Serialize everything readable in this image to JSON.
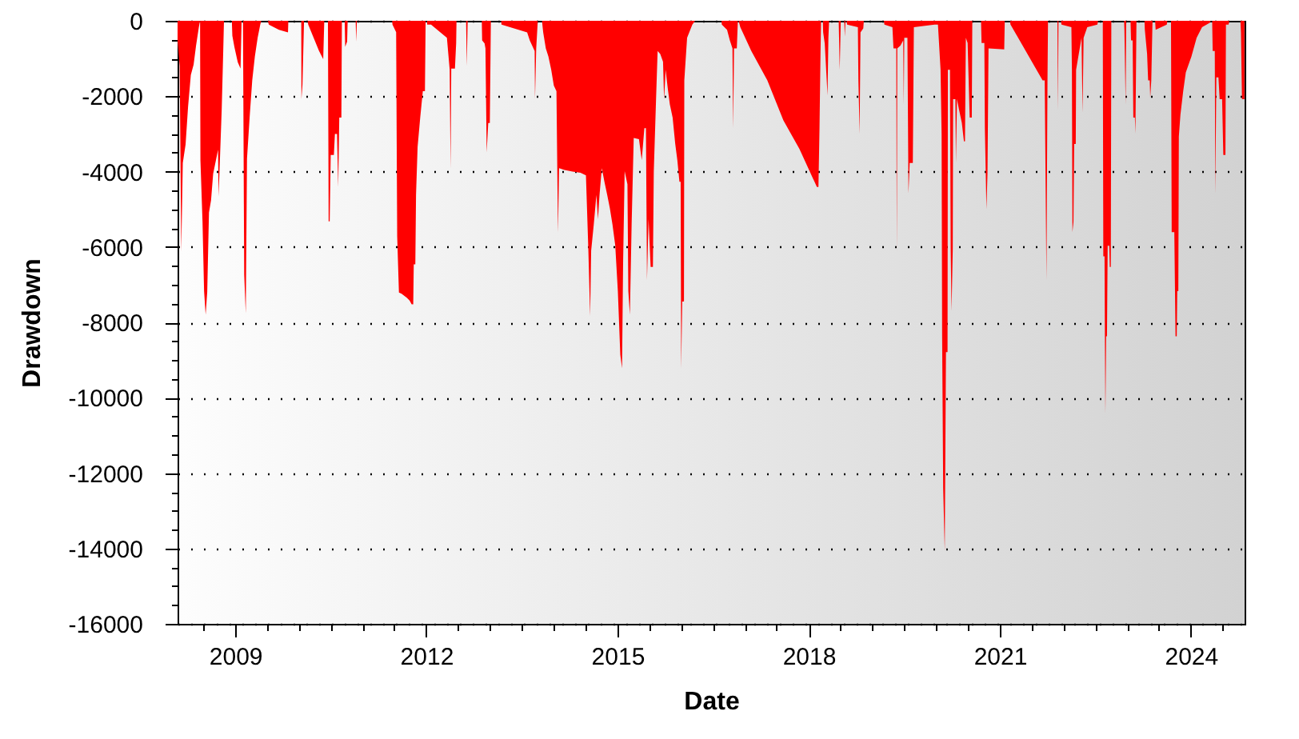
{
  "chart_data": {
    "type": "area",
    "xlabel": "Date",
    "ylabel": "Drawdown",
    "color": "#ff0000",
    "grid": "y",
    "xlim": [
      "2008-02-05",
      "2024-11-04"
    ],
    "ylim": [
      -16000,
      0
    ],
    "xticks": [
      {
        "value": "2008-07",
        "label": null
      },
      "2009",
      {
        "value": "2009-07",
        "label": null
      },
      {
        "value": "2010",
        "label": null
      },
      {
        "value": "2010-07",
        "label": null
      },
      {
        "value": "2011",
        "label": null
      },
      {
        "value": "2011-07",
        "label": null
      },
      "2012",
      {
        "value": "2012-07",
        "label": null
      },
      {
        "value": "2013",
        "label": null
      },
      {
        "value": "2013-07",
        "label": null
      },
      {
        "value": "2014",
        "label": null
      },
      {
        "value": "2014-07",
        "label": null
      },
      "2015",
      {
        "value": "2015-07",
        "label": null
      },
      {
        "value": "2016",
        "label": null
      },
      {
        "value": "2016-07",
        "label": null
      },
      {
        "value": "2017",
        "label": null
      },
      {
        "value": "2017-07",
        "label": null
      },
      "2018",
      {
        "value": "2018-07",
        "label": null
      },
      {
        "value": "2019",
        "label": null
      },
      {
        "value": "2019-07",
        "label": null
      },
      {
        "value": "2020",
        "label": null
      },
      {
        "value": "2020-07",
        "label": null
      },
      "2021",
      {
        "value": "2021-07",
        "label": null
      },
      {
        "value": "2022",
        "label": null
      },
      {
        "value": "2022-07",
        "label": null
      },
      {
        "value": "2023",
        "label": null
      },
      {
        "value": "2023-07",
        "label": null
      },
      "2024",
      {
        "value": "2024-07",
        "label": null
      }
    ],
    "yticks": [
      0,
      {
        "value": -500,
        "label": null
      },
      {
        "value": -1000,
        "label": null
      },
      {
        "value": -1500,
        "label": null
      },
      -2000,
      {
        "value": -2500,
        "label": null
      },
      {
        "value": -3000,
        "label": null
      },
      {
        "value": -3500,
        "label": null
      },
      -4000,
      {
        "value": -4500,
        "label": null
      },
      {
        "value": -5000,
        "label": null
      },
      {
        "value": -5500,
        "label": null
      },
      -6000,
      {
        "value": -6500,
        "label": null
      },
      {
        "value": -7000,
        "label": null
      },
      {
        "value": -7500,
        "label": null
      },
      -8000,
      {
        "value": -8500,
        "label": null
      },
      {
        "value": -9000,
        "label": null
      },
      {
        "value": -9500,
        "label": null
      },
      -10000,
      {
        "value": -10500,
        "label": null
      },
      {
        "value": -11000,
        "label": null
      },
      {
        "value": -11500,
        "label": null
      },
      -12000,
      {
        "value": -12500,
        "label": null
      },
      {
        "value": -13000,
        "label": null
      },
      {
        "value": -13500,
        "label": null
      },
      -14000,
      {
        "value": -14500,
        "label": null
      },
      {
        "value": -15000,
        "label": null
      },
      {
        "value": -15500,
        "label": null
      },
      -16000
    ],
    "x": [
      "2008-02-05",
      "2008-02-17",
      "2008-02-26",
      "2008-03-06",
      "2008-03-22",
      "2008-04-05",
      "2008-04-21",
      "2008-05-07",
      "2008-05-21",
      "2008-06-06",
      "2008-06-13",
      "2008-06-15",
      "2008-06-27",
      "2008-07-06",
      "2008-07-15",
      "2008-07-24",
      "2008-08-03",
      "2008-08-15",
      "2008-08-27",
      "2008-09-12",
      "2008-09-24",
      "2008-09-27",
      "2008-10-03",
      "2008-10-15",
      "2008-10-24",
      "2008-10-28",
      "2008-12-12",
      "2008-12-15",
      "2008-12-27",
      "2009-01-15",
      "2009-01-31",
      "2009-02-06",
      "2009-02-14",
      "2009-02-21",
      "2009-03-02",
      "2009-03-09",
      "2009-03-24",
      "2009-04-08",
      "2009-04-23",
      "2009-05-09",
      "2009-05-24",
      "2009-05-30",
      "2009-07-07",
      "2009-07-12",
      "2009-09-08",
      "2009-10-30",
      "2009-11-01",
      "2010-01-14",
      "2010-01-15",
      "2010-01-21",
      "2010-01-30",
      "2010-02-20",
      "2010-02-23",
      "2010-03-26",
      "2010-04-26",
      "2010-05-20",
      "2010-05-26",
      "2010-06-16",
      "2010-06-20",
      "2010-06-26",
      "2010-07-02",
      "2010-07-20",
      "2010-07-26",
      "2010-08-07",
      "2010-08-14",
      "2010-08-20",
      "2010-09-01",
      "2010-09-04",
      "2010-09-20",
      "2010-09-23",
      "2010-10-04",
      "2010-10-07",
      "2010-11-22",
      "2010-11-25",
      "2010-11-29",
      "2011-06-19",
      "2011-06-21",
      "2011-07-12",
      "2011-07-18",
      "2011-07-28",
      "2011-08-12",
      "2011-09-11",
      "2011-09-27",
      "2011-10-09",
      "2011-10-18",
      "2011-10-21",
      "2011-10-30",
      "2011-11-03",
      "2011-11-12",
      "2011-11-27",
      "2011-12-12",
      "2011-12-24",
      "2011-12-28",
      "2012-01-05",
      "2012-01-06",
      "2012-01-28",
      "2012-04-28",
      "2012-05-14",
      "2012-05-19",
      "2012-05-23",
      "2012-06-13",
      "2012-06-20",
      "2012-06-22",
      "2012-08-16",
      "2012-08-20",
      "2012-08-25",
      "2012-11-14",
      "2012-11-16",
      "2012-11-30",
      "2012-12-05",
      "2012-12-12",
      "2012-12-21",
      "2012-12-30",
      "2013-01-05",
      "2013-03-05",
      "2013-03-07",
      "2013-08-01",
      "2013-08-16",
      "2013-09-13",
      "2013-09-15",
      "2013-09-22",
      "2013-10-01",
      "2013-10-25",
      "2013-11-01",
      "2013-11-16",
      "2013-12-01",
      "2013-12-17",
      "2014-01-01",
      "2014-01-16",
      "2014-01-22",
      "2014-01-25",
      "2014-01-29",
      "2014-01-31",
      "2014-03-03",
      "2014-04-18",
      "2014-06-03",
      "2014-07-04",
      "2014-07-18",
      "2014-07-28",
      "2014-08-03",
      "2014-08-18",
      "2014-09-02",
      "2014-09-11",
      "2014-09-20",
      "2014-10-03",
      "2014-10-18",
      "2014-11-03",
      "2014-11-18",
      "2014-12-03",
      "2014-12-19",
      "2015-01-03",
      "2015-01-17",
      "2015-01-27",
      "2015-02-02",
      "2015-02-11",
      "2015-02-27",
      "2015-03-04",
      "2015-03-13",
      "2015-03-23",
      "2015-04-04",
      "2015-05-04",
      "2015-05-20",
      "2015-06-04",
      "2015-06-13",
      "2015-06-19",
      "2015-06-28",
      "2015-07-10",
      "2015-07-23",
      "2015-07-28",
      "2015-08-10",
      "2015-08-19",
      "2015-09-03",
      "2015-09-19",
      "2015-09-25",
      "2015-10-04",
      "2015-10-16",
      "2015-10-28",
      "2015-11-13",
      "2015-11-28",
      "2015-12-10",
      "2015-12-22",
      "2015-12-29",
      "2016-01-01",
      "2016-01-07",
      "2016-01-17",
      "2016-01-19",
      "2016-02-04",
      "2016-03-05",
      "2016-03-21",
      "2016-08-19",
      "2016-08-21",
      "2016-09-20",
      "2016-10-06",
      "2016-10-21",
      "2016-10-25",
      "2016-10-30",
      "2016-11-15",
      "2016-11-21",
      "2016-11-25",
      "2016-12-05",
      "2017-02-06",
      "2017-05-09",
      "2017-08-09",
      "2017-11-09",
      "2018-02-17",
      "2018-02-26",
      "2018-03-04",
      "2018-03-10",
      "2018-03-13",
      "2018-03-23",
      "2018-03-25",
      "2018-04-03",
      "2018-04-19",
      "2018-04-24",
      "2018-04-28",
      "2018-06-22",
      "2018-06-28",
      "2018-07-04",
      "2018-07-24",
      "2018-07-27",
      "2018-07-31",
      "2018-08-06",
      "2018-08-09",
      "2018-10-10",
      "2018-10-13",
      "2018-10-20",
      "2018-10-25",
      "2018-11-10",
      "2018-11-13",
      "2019-03-08",
      "2019-03-11",
      "2019-04-26",
      "2019-05-02",
      "2019-05-18",
      "2019-05-21",
      "2019-05-24",
      "2019-06-11",
      "2019-06-27",
      "2019-06-30",
      "2019-07-03",
      "2019-07-21",
      "2019-07-27",
      "2019-08-03",
      "2019-08-21",
      "2019-08-27",
      "2019-12-24",
      "2020-01-12",
      "2020-01-27",
      "2020-02-02",
      "2020-02-05",
      "2020-02-11",
      "2020-02-20",
      "2020-02-27",
      "2020-03-07",
      "2020-03-09",
      "2020-03-21",
      "2020-03-25",
      "2020-03-30",
      "2020-04-06",
      "2020-04-08",
      "2020-04-21",
      "2020-04-24",
      "2020-04-30",
      "2020-05-12",
      "2020-05-28",
      "2020-06-09",
      "2020-06-15",
      "2020-06-20",
      "2020-06-30",
      "2020-07-12",
      "2020-07-24",
      "2020-07-27",
      "2020-09-15",
      "2020-09-18",
      "2020-10-04",
      "2020-10-07",
      "2020-10-16",
      "2020-10-22",
      "2020-10-28",
      "2021-01-26",
      "2021-01-29",
      "2021-02-28",
      "2021-03-03",
      "2021-09-03",
      "2021-09-15",
      "2021-09-25",
      "2021-10-01",
      "2021-10-04",
      "2021-11-27",
      "2021-11-30",
      "2021-12-03",
      "2021-12-17",
      "2021-12-20",
      "2022-02-15",
      "2022-02-18",
      "2022-02-21",
      "2022-02-27",
      "2022-03-03",
      "2022-03-12",
      "2022-03-14",
      "2022-04-14",
      "2022-04-20",
      "2022-04-26",
      "2022-05-17",
      "2022-07-14",
      "2022-07-18",
      "2022-08-14",
      "2022-08-17",
      "2022-08-24",
      "2022-08-26",
      "2022-08-29",
      "2022-09-02",
      "2022-09-07",
      "2022-09-11",
      "2022-09-20",
      "2022-09-23",
      "2022-09-29",
      "2022-10-02",
      "2022-12-14",
      "2022-12-16",
      "2022-12-23",
      "2022-12-26",
      "2023-01-20",
      "2023-01-23",
      "2023-02-01",
      "2023-02-05",
      "2023-02-14",
      "2023-02-17",
      "2023-02-23",
      "2023-04-10",
      "2023-04-12",
      "2023-04-25",
      "2023-05-01",
      "2023-05-10",
      "2023-05-13",
      "2023-05-19",
      "2023-05-26",
      "2023-06-10",
      "2023-06-13",
      "2023-08-16",
      "2023-08-19",
      "2023-09-09",
      "2023-09-13",
      "2023-09-28",
      "2023-10-02",
      "2023-10-05",
      "2023-10-12",
      "2023-10-15",
      "2023-10-21",
      "2023-10-24",
      "2023-11-02",
      "2023-11-18",
      "2023-12-03",
      "2024-01-04",
      "2024-02-03",
      "2024-03-05",
      "2024-04-20",
      "2024-04-23",
      "2024-05-02",
      "2024-05-05",
      "2024-05-17",
      "2024-05-20",
      "2024-05-26",
      "2024-06-07",
      "2024-06-14",
      "2024-06-28",
      "2024-07-05",
      "2024-07-17",
      "2024-07-20",
      "2024-08-04",
      "2024-08-08",
      "2024-10-11",
      "2024-10-14",
      "2024-10-20",
      "2024-10-29",
      "2024-11-03"
    ],
    "values": [
      -520,
      -1200,
      -6130,
      -3770,
      -3280,
      -2290,
      -1440,
      -1160,
      -660,
      -170,
      0,
      -3700,
      -5330,
      -7170,
      -7800,
      -7200,
      -5090,
      -4760,
      -4060,
      -3700,
      -3420,
      -4660,
      -3920,
      -2360,
      -760,
      0,
      0,
      -400,
      -700,
      -1100,
      -1270,
      0,
      0,
      -6740,
      -7760,
      -3660,
      -2570,
      -1580,
      -950,
      -450,
      -100,
      0,
      0,
      -100,
      -240,
      -310,
      0,
      0,
      -2080,
      -1700,
      0,
      0,
      -100,
      -450,
      -800,
      -1020,
      0,
      0,
      -5320,
      -5320,
      -3560,
      -3560,
      -3000,
      -3000,
      -4410,
      -2570,
      -2570,
      0,
      0,
      -690,
      -550,
      0,
      0,
      -550,
      0,
      0,
      -100,
      -300,
      -5720,
      -7210,
      -7240,
      -7350,
      -7420,
      -7520,
      -7520,
      -6460,
      -6460,
      -4620,
      -3350,
      -2570,
      -1870,
      -1870,
      0,
      0,
      -100,
      -100,
      -450,
      -1300,
      -3910,
      -1270,
      -1270,
      -600,
      0,
      0,
      -1190,
      0,
      0,
      -520,
      -600,
      -730,
      -3490,
      -2710,
      -2710,
      0,
      0,
      -100,
      -310,
      -520,
      -800,
      -2080,
      -730,
      0,
      0,
      -310,
      -730,
      -950,
      -1300,
      -1720,
      -1870,
      -4480,
      -5610,
      -4480,
      -3910,
      -3960,
      -4000,
      -4030,
      -4100,
      -6100,
      -7830,
      -6100,
      -5400,
      -4620,
      -5260,
      -4620,
      -3910,
      -4270,
      -4620,
      -4970,
      -5400,
      -5960,
      -7170,
      -8860,
      -9220,
      -6460,
      -3990,
      -4340,
      -7170,
      -7800,
      -5400,
      -3110,
      -3140,
      -3700,
      -2850,
      -2850,
      -6880,
      -5260,
      -6530,
      -6530,
      -4000,
      -2080,
      -800,
      -880,
      -1090,
      -2080,
      -1300,
      -1790,
      -2220,
      -2570,
      -3270,
      -3700,
      -4270,
      -4270,
      -9220,
      -7450,
      -7450,
      -1580,
      -450,
      -100,
      0,
      0,
      -100,
      -240,
      -520,
      -730,
      -2850,
      -730,
      -730,
      0,
      0,
      -170,
      -800,
      -1580,
      -2640,
      -3400,
      -4410,
      -4410,
      -2850,
      -800,
      0,
      0,
      -310,
      -600,
      -1980,
      -450,
      0,
      0,
      -1300,
      0,
      0,
      -420,
      0,
      0,
      -100,
      -170,
      -1580,
      -2990,
      -310,
      -200,
      0,
      0,
      -100,
      -170,
      -730,
      -730,
      -6180,
      -730,
      -660,
      -520,
      -2220,
      -450,
      -450,
      -4580,
      -3770,
      -3770,
      -170,
      -100,
      -100,
      -1300,
      -3000,
      -8370,
      -12400,
      -14060,
      -8790,
      -8790,
      -1300,
      -1300,
      -6040,
      -7700,
      -6040,
      -2080,
      -2080,
      -3770,
      -2080,
      -2360,
      -2710,
      -3200,
      -3200,
      -450,
      -590,
      -2570,
      -2570,
      0,
      0,
      -590,
      -590,
      -2850,
      -5000,
      -4060,
      -730,
      -760,
      0,
      0,
      -100,
      -1580,
      -1580,
      -6880,
      -1580,
      0,
      0,
      -2360,
      0,
      0,
      -100,
      -170,
      -1300,
      -5610,
      -5330,
      -3270,
      -3270,
      -1300,
      -450,
      -2430,
      -450,
      -170,
      -100,
      0,
      0,
      -6250,
      -6250,
      -8370,
      -10420,
      -8370,
      -8370,
      -5970,
      -5970,
      -6530,
      -6530,
      0,
      0,
      -240,
      -2220,
      0,
      0,
      -520,
      -520,
      -2570,
      -2570,
      -2990,
      0,
      0,
      -240,
      -880,
      -1580,
      -1580,
      -2040,
      -1580,
      0,
      0,
      -240,
      -100,
      0,
      0,
      -5610,
      -5610,
      -7170,
      -8370,
      -8370,
      -7170,
      -7170,
      -3070,
      -2500,
      -1870,
      -1370,
      -950,
      -450,
      -170,
      -50,
      0,
      0,
      -800,
      -800,
      -4580,
      -1500,
      -1500,
      -2080,
      -2080,
      -3560,
      -3560,
      -100,
      -100,
      0,
      0,
      -310,
      -2080,
      -2080,
      -2080
    ]
  }
}
